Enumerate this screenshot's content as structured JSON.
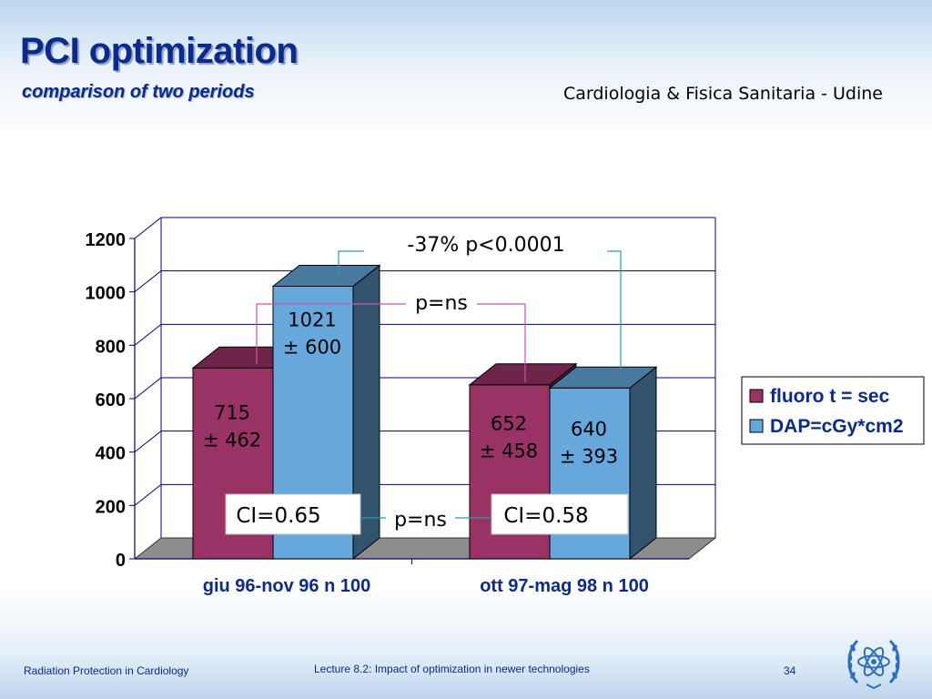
{
  "header": {
    "title": "PCI optimization",
    "subtitle": "comparison of two periods",
    "affiliation": "Cardiologia & Fisica Sanitaria - Udine"
  },
  "footer": {
    "left": "Radiation Protection in Cardiology",
    "center": "Lecture 8.2: Impact of optimization in newer technologies",
    "page": "34",
    "logo_icon": "un-emblem-icon"
  },
  "colors": {
    "title": "#0b2a8f",
    "series_fluoro": "#993366",
    "series_dap": "#66a8dc",
    "floor": "#8c8c8c",
    "axis": "#000080"
  },
  "chart_data": {
    "type": "bar",
    "categories": [
      "giu 96-nov 96 n 100",
      "ott 97-mag 98 n 100"
    ],
    "series": [
      {
        "name": "fluoro t = sec",
        "values": [
          715,
          652
        ],
        "labels": [
          [
            "715",
            "± 462"
          ],
          [
            "652",
            "± 458"
          ]
        ]
      },
      {
        "name": "DAP=cGy*cm2",
        "values": [
          1021,
          640
        ],
        "labels": [
          [
            "1021",
            "± 600"
          ],
          [
            "640",
            "± 393"
          ]
        ]
      }
    ],
    "ylim": [
      0,
      1200
    ],
    "yticks": [
      "0",
      "200",
      "400",
      "600",
      "800",
      "1000",
      "1200"
    ],
    "grid": true,
    "legend": "right",
    "annotations": {
      "dap_compare": "-37%  p<0.0001",
      "fluoro_compare": "p=ns",
      "ci_compare": "p=ns",
      "ci_left": "CI=0.65",
      "ci_right": "CI=0.58"
    }
  }
}
